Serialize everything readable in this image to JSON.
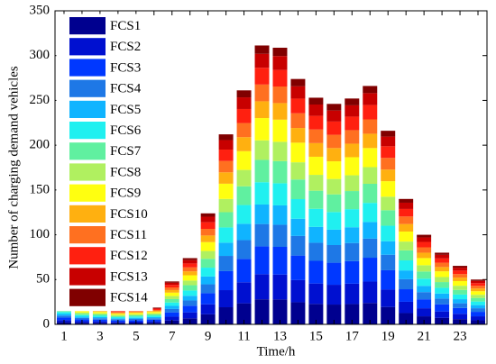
{
  "chart_data": {
    "type": "stacked_bar",
    "x_label": "Time/h",
    "y_label": "Number of charging demand vehicles",
    "categories": [
      "1",
      null,
      "3",
      null,
      "5",
      null,
      "7",
      null,
      "9",
      null,
      "11",
      null,
      "13",
      null,
      "15",
      null,
      "17",
      null,
      "19",
      null,
      "21",
      null,
      "23",
      null
    ],
    "ylim": [
      0,
      350
    ],
    "yticks": [
      0,
      50,
      100,
      150,
      200,
      250,
      300,
      350
    ],
    "legend": "upper left",
    "series": [
      {
        "name": "FCS1",
        "color": "#00008f",
        "values": [
          2.4,
          1.8,
          1.7,
          1.4,
          1.5,
          1.7,
          4.3,
          6.7,
          11.2,
          19.1,
          23.5,
          28,
          27.8,
          24.7,
          22.8,
          22.1,
          22.7,
          23.9,
          19.4,
          12.6,
          9,
          7.2,
          5.9,
          4.5
        ]
      },
      {
        "name": "FCS2",
        "color": "#0010d0",
        "values": [
          2.4,
          1.8,
          1.7,
          1.4,
          1.5,
          1.7,
          4.3,
          6.7,
          11.2,
          19.1,
          23.5,
          28,
          27.8,
          24.7,
          22.8,
          22.1,
          22.7,
          23.9,
          19.4,
          12.6,
          9,
          7.2,
          5.9,
          4.5
        ]
      },
      {
        "name": "FCS3",
        "color": "#0038ff",
        "values": [
          2.7,
          2,
          1.9,
          1.6,
          1.7,
          1.9,
          4.8,
          7.4,
          12.4,
          21.2,
          26.1,
          31.1,
          30.9,
          27.4,
          25.3,
          24.6,
          25.2,
          26.6,
          21.6,
          14,
          10,
          8,
          6.5,
          5
        ]
      },
      {
        "name": "FCS4",
        "color": "#1e78e6",
        "values": [
          2.2,
          1.6,
          1.5,
          1.3,
          1.4,
          1.5,
          3.8,
          5.9,
          9.9,
          17,
          20.9,
          24.9,
          24.7,
          21.9,
          20.2,
          19.7,
          20.2,
          21.3,
          17.3,
          11.2,
          8,
          6.4,
          5.2,
          4
        ]
      },
      {
        "name": "FCS5",
        "color": "#10b4ff",
        "values": [
          1.9,
          1.4,
          1.3,
          1.1,
          1.2,
          1.3,
          3.4,
          5.2,
          8.7,
          14.8,
          18.3,
          21.8,
          21.6,
          19.2,
          17.7,
          17.2,
          17.6,
          18.6,
          15.1,
          9.8,
          7,
          5.6,
          4.6,
          3.5
        ]
      },
      {
        "name": "FCS6",
        "color": "#20f0f0",
        "values": [
          2.2,
          1.6,
          1.5,
          1.3,
          1.4,
          1.5,
          3.8,
          5.9,
          9.9,
          17,
          20.9,
          24.9,
          24.7,
          21.9,
          20.2,
          19.7,
          20.2,
          21.3,
          17.3,
          11.2,
          8,
          6.4,
          5.2,
          4
        ]
      },
      {
        "name": "FCS7",
        "color": "#60f0a0",
        "values": [
          2.2,
          1.6,
          1.5,
          1.3,
          1.4,
          1.5,
          3.8,
          5.9,
          9.9,
          17,
          20.9,
          24.9,
          24.7,
          21.9,
          20.2,
          19.7,
          20.2,
          21.3,
          17.3,
          11.2,
          8,
          6.4,
          5.2,
          4
        ]
      },
      {
        "name": "FCS8",
        "color": "#b0f060",
        "values": [
          1.9,
          1.4,
          1.3,
          1.1,
          1.2,
          1.3,
          3.4,
          5.2,
          8.7,
          14.8,
          18.3,
          21.8,
          21.6,
          19.2,
          17.7,
          17.2,
          17.6,
          18.6,
          15.1,
          9.8,
          7,
          5.6,
          4.6,
          3.5
        ]
      },
      {
        "name": "FCS9",
        "color": "#ffff10",
        "values": [
          2.2,
          1.6,
          1.5,
          1.3,
          1.4,
          1.5,
          3.8,
          5.9,
          9.9,
          17,
          20.9,
          24.9,
          24.7,
          21.9,
          20.2,
          19.7,
          20.2,
          21.3,
          17.3,
          11.2,
          8,
          6.4,
          5.2,
          4
        ]
      },
      {
        "name": "FCS10",
        "color": "#ffb010",
        "values": [
          1.6,
          1.2,
          1.1,
          1,
          1,
          1.1,
          2.9,
          4.4,
          7.4,
          12.7,
          15.7,
          18.7,
          18.5,
          16.4,
          15.2,
          14.8,
          15.1,
          16,
          13,
          8.4,
          6,
          4.8,
          3.9,
          3
        ]
      },
      {
        "name": "FCS11",
        "color": "#ff7020",
        "values": [
          1.6,
          1.2,
          1.1,
          1,
          1,
          1.1,
          2.9,
          4.4,
          7.4,
          12.7,
          15.7,
          18.7,
          18.5,
          16.4,
          15.2,
          14.8,
          15.1,
          16,
          13,
          8.4,
          6,
          4.8,
          3.9,
          3
        ]
      },
      {
        "name": "FCS12",
        "color": "#ff2010",
        "values": [
          1.6,
          1.2,
          1.1,
          1,
          1,
          1.1,
          2.9,
          4.4,
          7.4,
          12.7,
          15.7,
          18.7,
          18.5,
          16.4,
          15.2,
          14.8,
          15.1,
          16,
          13,
          8.4,
          6,
          4.8,
          3.9,
          3
        ]
      },
      {
        "name": "FCS13",
        "color": "#c80000",
        "values": [
          1.4,
          1,
          1,
          0.8,
          0.9,
          1,
          2.4,
          3.7,
          6.2,
          10.6,
          13,
          15.6,
          15.5,
          13.7,
          12.7,
          12.3,
          12.6,
          13.3,
          10.8,
          7,
          5,
          4,
          3.3,
          2.5
        ]
      },
      {
        "name": "FCS14",
        "color": "#800000",
        "values": [
          0.8,
          0.6,
          0.6,
          0.5,
          0.5,
          0.6,
          1.4,
          2.2,
          3.7,
          6.4,
          7.8,
          9.3,
          9.3,
          8.2,
          7.6,
          7.4,
          7.6,
          8,
          6.5,
          4.2,
          3,
          2.4,
          2,
          1.5
        ]
      }
    ]
  }
}
